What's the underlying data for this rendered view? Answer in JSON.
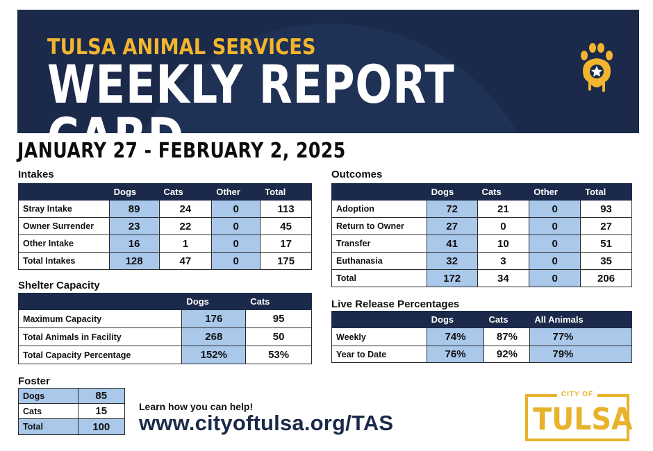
{
  "header": {
    "org": "TULSA ANIMAL SERVICES",
    "title": "WEEKLY REPORT CARD",
    "logo_icon": "paw-star-icon"
  },
  "date_range": "JANUARY 27 - FEBRUARY 2, 2025",
  "colors": {
    "navy": "#1b2a4a",
    "gold": "#f2b52e",
    "cell_blue": "#a9c8ea"
  },
  "intakes": {
    "title": "Intakes",
    "columns": [
      "Dogs",
      "Cats",
      "Other",
      "Total"
    ],
    "rows": [
      {
        "label": "Stray Intake",
        "values": [
          "89",
          "24",
          "0",
          "113"
        ]
      },
      {
        "label": "Owner Surrender",
        "values": [
          "23",
          "22",
          "0",
          "45"
        ]
      },
      {
        "label": "Other Intake",
        "values": [
          "16",
          "1",
          "0",
          "17"
        ]
      },
      {
        "label": "Total Intakes",
        "values": [
          "128",
          "47",
          "0",
          "175"
        ]
      }
    ]
  },
  "outcomes": {
    "title": "Outcomes",
    "columns": [
      "Dogs",
      "Cats",
      "Other",
      "Total"
    ],
    "rows": [
      {
        "label": "Adoption",
        "values": [
          "72",
          "21",
          "0",
          "93"
        ]
      },
      {
        "label": "Return to Owner",
        "values": [
          "27",
          "0",
          "0",
          "27"
        ]
      },
      {
        "label": "Transfer",
        "values": [
          "41",
          "10",
          "0",
          "51"
        ]
      },
      {
        "label": "Euthanasia",
        "values": [
          "32",
          "3",
          "0",
          "35"
        ]
      },
      {
        "label": "Total",
        "values": [
          "172",
          "34",
          "0",
          "206"
        ]
      }
    ]
  },
  "shelter_capacity": {
    "title": "Shelter Capacity",
    "columns": [
      "Dogs",
      "Cats"
    ],
    "rows": [
      {
        "label": "Maximum Capacity",
        "values": [
          "176",
          "95"
        ]
      },
      {
        "label": "Total Animals in Facility",
        "values": [
          "268",
          "50"
        ]
      },
      {
        "label": "Total Capacity Percentage",
        "values": [
          "152%",
          "53%"
        ]
      }
    ]
  },
  "live_release": {
    "title": "Live Release Percentages",
    "columns": [
      "Dogs",
      "Cats",
      "All Animals"
    ],
    "rows": [
      {
        "label": "Weekly",
        "values": [
          "74%",
          "87%",
          "77%"
        ]
      },
      {
        "label": "Year to Date",
        "values": [
          "76%",
          "92%",
          "79%"
        ]
      }
    ]
  },
  "foster": {
    "title": "Foster",
    "rows": [
      {
        "label": "Dogs",
        "value": "85"
      },
      {
        "label": "Cats",
        "value": "15"
      },
      {
        "label": "Total",
        "value": "100"
      }
    ]
  },
  "footer": {
    "help_text": "Learn how you can help!",
    "url": "www.cityoftulsa.org/TAS",
    "city_logo_small": "CITY OF",
    "city_logo_large": "TULSA"
  }
}
